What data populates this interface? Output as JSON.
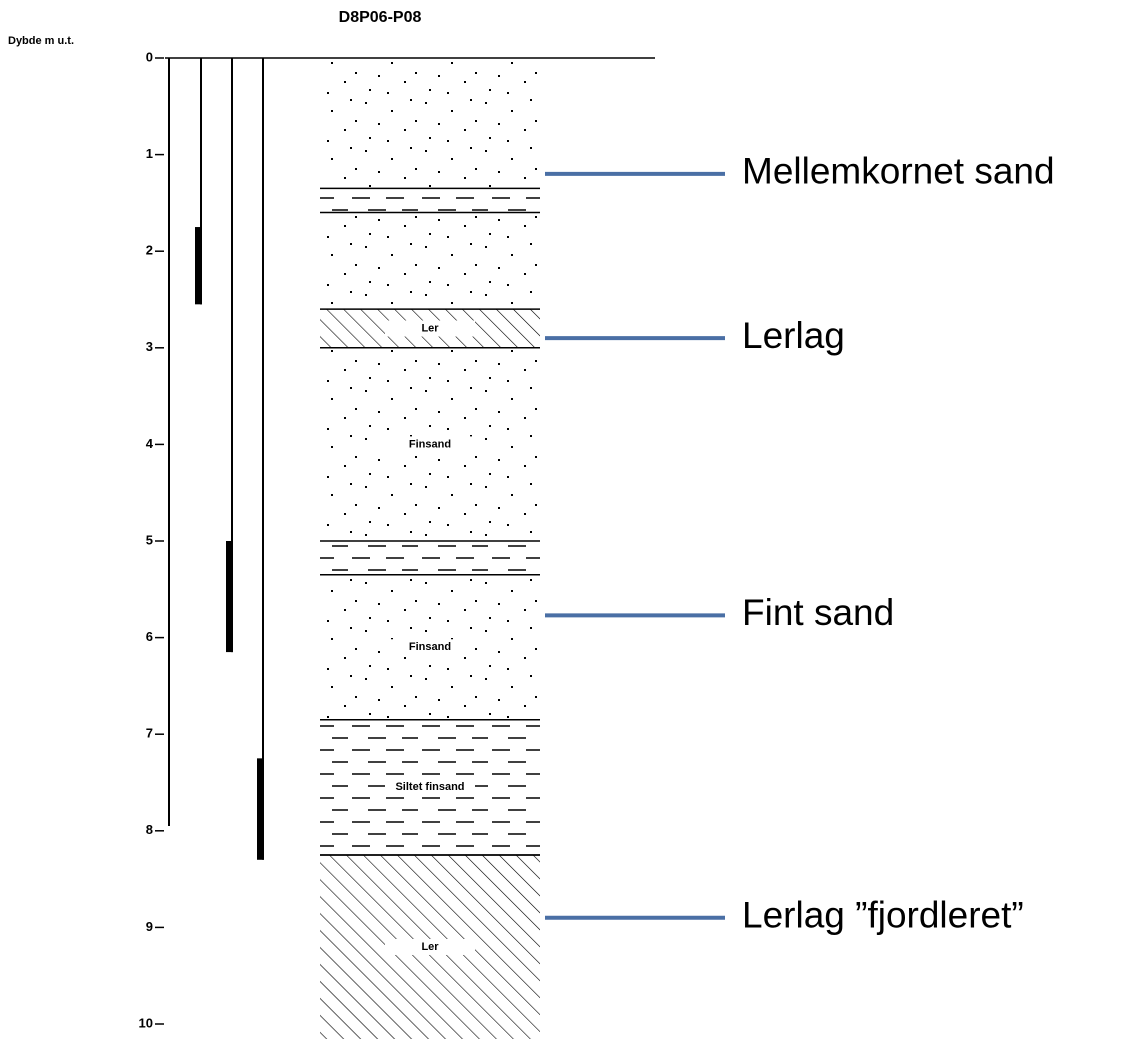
{
  "title": "D8P06-P08",
  "axis": {
    "label": "Dybde m u.t.",
    "lim": [
      0,
      10
    ],
    "ticks": [
      0,
      1,
      2,
      3,
      4,
      5,
      6,
      7,
      8,
      9,
      10
    ]
  },
  "soundings": [
    {
      "bottom": 7.95
    },
    {
      "bottom": 2.55,
      "hard_from": 1.75
    },
    {
      "bottom": 6.15,
      "hard_from": 5.0
    },
    {
      "bottom": 8.3,
      "hard_from": 7.25
    }
  ],
  "layers": [
    {
      "top": 0,
      "bottom": 1.35,
      "pattern": "dots"
    },
    {
      "top": 1.35,
      "bottom": 1.6,
      "pattern": "dashes"
    },
    {
      "top": 1.6,
      "bottom": 2.6,
      "pattern": "dots"
    },
    {
      "top": 2.6,
      "bottom": 3.0,
      "pattern": "hatch",
      "label": "Ler"
    },
    {
      "top": 3.0,
      "bottom": 5.0,
      "pattern": "dots",
      "label": "Finsand"
    },
    {
      "top": 5.0,
      "bottom": 5.35,
      "pattern": "dashes"
    },
    {
      "top": 5.35,
      "bottom": 6.85,
      "pattern": "dots",
      "label": "Finsand"
    },
    {
      "top": 6.85,
      "bottom": 8.25,
      "pattern": "dashes",
      "label": "Siltet finsand"
    },
    {
      "top": 8.25,
      "bottom": 10.2,
      "pattern": "hatch",
      "label": "Ler"
    }
  ],
  "annotations": [
    {
      "text": "Mellemkornet sand",
      "depth": 1.2
    },
    {
      "text": "Lerlag",
      "depth": 2.9
    },
    {
      "text": "Fint sand",
      "depth": 5.77
    },
    {
      "text": "Lerlag ”fjordleret”",
      "depth": 8.9
    }
  ]
}
